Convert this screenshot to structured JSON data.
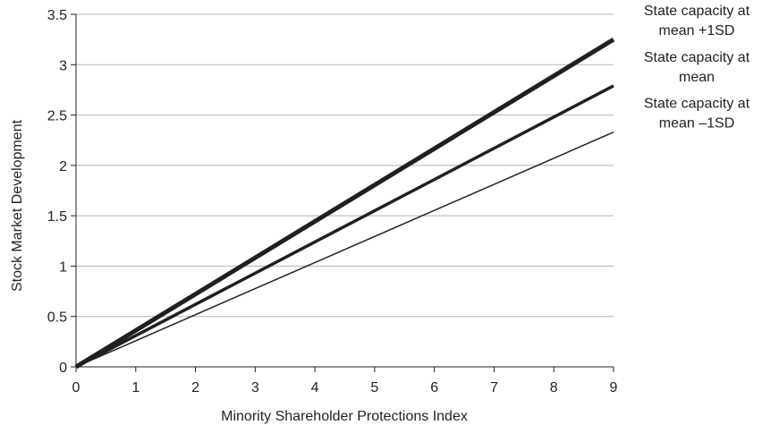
{
  "chart_data": {
    "type": "line",
    "xlabel": "Minority Shareholder Protections Index",
    "ylabel": "Stock Market Development",
    "xlim": [
      0,
      9
    ],
    "ylim": [
      0,
      3.5
    ],
    "x_ticks": [
      "0",
      "1",
      "2",
      "3",
      "4",
      "5",
      "6",
      "7",
      "8",
      "9"
    ],
    "y_ticks": [
      "0",
      "0.5",
      "1",
      "1.5",
      "2",
      "2.5",
      "3",
      "3.5"
    ],
    "grid": "horizontal",
    "legend": "right",
    "series": [
      {
        "name_lines": [
          "State capacity at",
          "mean +1SD"
        ],
        "x": [
          0,
          9
        ],
        "y": [
          0,
          3.25
        ],
        "color": "#231f20"
      },
      {
        "name_lines": [
          "State capacity at",
          "mean"
        ],
        "x": [
          0,
          9
        ],
        "y": [
          0,
          2.79
        ],
        "color": "#231f20"
      },
      {
        "name_lines": [
          "State capacity at",
          "mean –1SD"
        ],
        "x": [
          0,
          9
        ],
        "y": [
          0,
          2.33
        ],
        "color": "#231f20"
      }
    ]
  }
}
